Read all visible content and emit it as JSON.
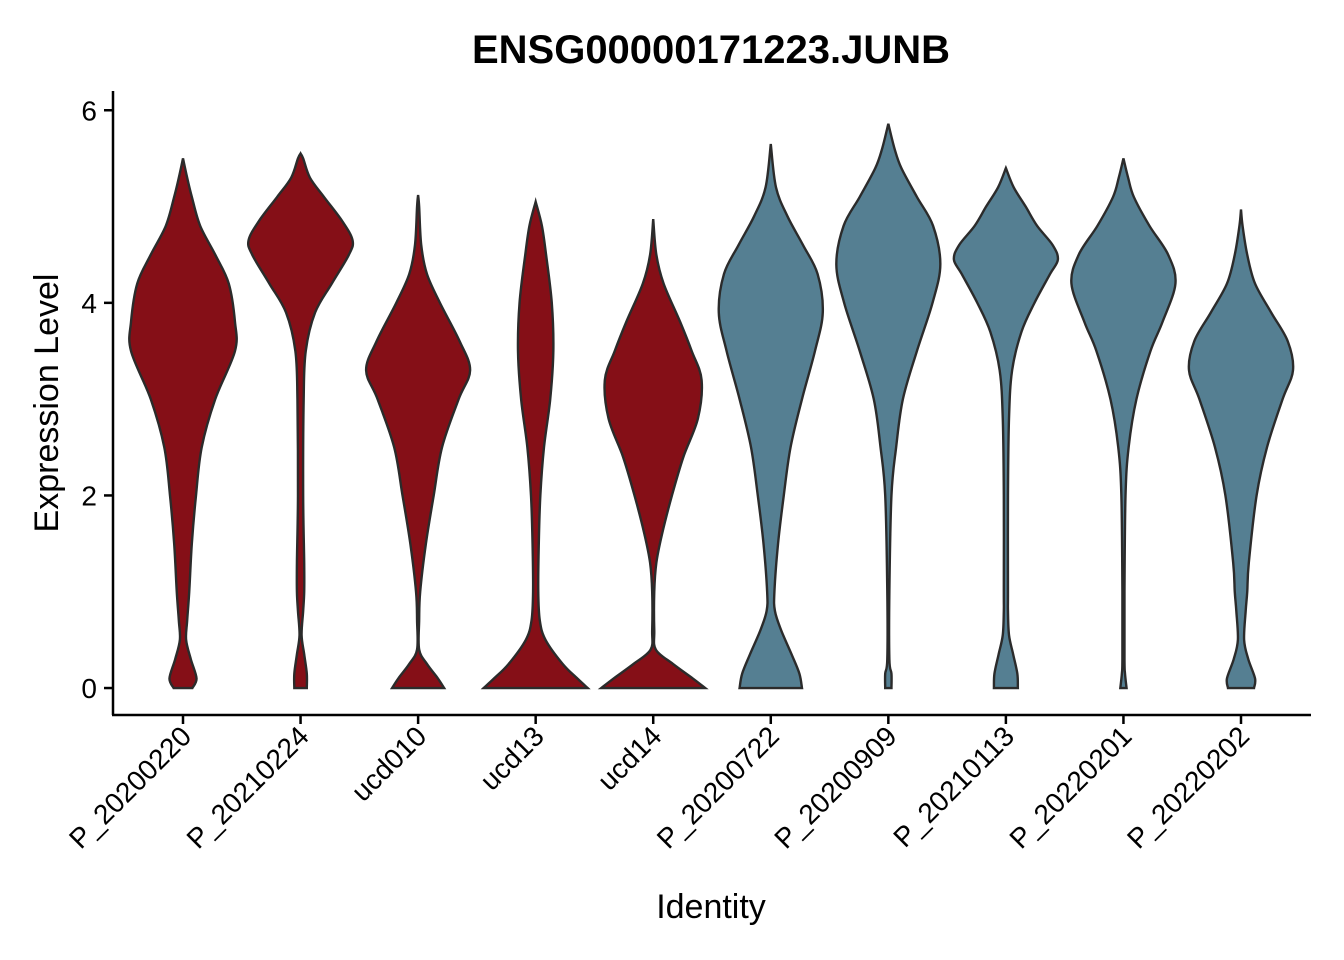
{
  "chart_data": {
    "type": "violin",
    "title": "ENSG00000171223.JUNB",
    "xlabel": "Identity",
    "ylabel": "Expression Level",
    "ylim": [
      -0.28,
      6.2
    ],
    "yticks": [
      0,
      2,
      4,
      6
    ],
    "grid": false,
    "legend": "none",
    "categories": [
      "P_20200220",
      "P_20210224",
      "ucd010",
      "ucd13",
      "ucd14",
      "P_20200722",
      "P_20200909",
      "P_20210113",
      "P_20220201",
      "P_20220202"
    ],
    "violins": [
      {
        "category": "P_20200220",
        "color": "#850F17",
        "max_value": 5.5,
        "profile": [
          [
            0,
            0.18
          ],
          [
            0.1,
            0.26
          ],
          [
            0.3,
            0.15
          ],
          [
            0.5,
            0.06
          ],
          [
            0.7,
            0.08
          ],
          [
            1.0,
            0.12
          ],
          [
            1.5,
            0.17
          ],
          [
            2.0,
            0.25
          ],
          [
            2.5,
            0.36
          ],
          [
            3.0,
            0.62
          ],
          [
            3.5,
            1.0
          ],
          [
            3.8,
            1.0
          ],
          [
            4.2,
            0.88
          ],
          [
            4.5,
            0.62
          ],
          [
            4.8,
            0.33
          ],
          [
            5.1,
            0.17
          ],
          [
            5.3,
            0.08
          ],
          [
            5.5,
            0.0
          ]
        ]
      },
      {
        "category": "P_20210224",
        "color": "#850F17",
        "max_value": 5.55,
        "profile": [
          [
            0,
            0.12
          ],
          [
            0.15,
            0.12
          ],
          [
            0.35,
            0.07
          ],
          [
            0.55,
            0.02
          ],
          [
            0.8,
            0.05
          ],
          [
            1.0,
            0.07
          ],
          [
            1.3,
            0.07
          ],
          [
            2.0,
            0.05
          ],
          [
            3.0,
            0.06
          ],
          [
            3.5,
            0.1
          ],
          [
            3.9,
            0.28
          ],
          [
            4.2,
            0.6
          ],
          [
            4.5,
            0.93
          ],
          [
            4.65,
            1.0
          ],
          [
            4.85,
            0.8
          ],
          [
            5.1,
            0.45
          ],
          [
            5.3,
            0.18
          ],
          [
            5.5,
            0.05
          ],
          [
            5.55,
            0.0
          ]
        ]
      },
      {
        "category": "ucd010",
        "color": "#850F17",
        "max_value": 5.12,
        "profile": [
          [
            0,
            0.5
          ],
          [
            0.1,
            0.38
          ],
          [
            0.25,
            0.17
          ],
          [
            0.4,
            0.02
          ],
          [
            0.7,
            0.02
          ],
          [
            1.0,
            0.04
          ],
          [
            1.5,
            0.15
          ],
          [
            2.0,
            0.3
          ],
          [
            2.5,
            0.46
          ],
          [
            3.0,
            0.78
          ],
          [
            3.3,
            1.0
          ],
          [
            3.6,
            0.8
          ],
          [
            4.0,
            0.42
          ],
          [
            4.3,
            0.17
          ],
          [
            4.6,
            0.06
          ],
          [
            5.0,
            0.02
          ],
          [
            5.12,
            0.0
          ]
        ]
      },
      {
        "category": "ucd13",
        "color": "#850F17",
        "max_value": 5.05,
        "profile": [
          [
            0,
            1.0
          ],
          [
            0.1,
            0.8
          ],
          [
            0.25,
            0.52
          ],
          [
            0.5,
            0.19
          ],
          [
            0.7,
            0.08
          ],
          [
            1.0,
            0.05
          ],
          [
            1.5,
            0.06
          ],
          [
            2.0,
            0.09
          ],
          [
            2.5,
            0.16
          ],
          [
            3.0,
            0.28
          ],
          [
            3.5,
            0.34
          ],
          [
            4.0,
            0.31
          ],
          [
            4.5,
            0.2
          ],
          [
            4.8,
            0.12
          ],
          [
            5.05,
            0.0
          ]
        ]
      },
      {
        "category": "ucd14",
        "color": "#850F17",
        "max_value": 4.87,
        "profile": [
          [
            0,
            1.0
          ],
          [
            0.1,
            0.76
          ],
          [
            0.25,
            0.38
          ],
          [
            0.4,
            0.05
          ],
          [
            0.6,
            0.02
          ],
          [
            1.0,
            0.02
          ],
          [
            1.3,
            0.06
          ],
          [
            1.6,
            0.17
          ],
          [
            2.0,
            0.36
          ],
          [
            2.4,
            0.58
          ],
          [
            2.8,
            0.86
          ],
          [
            3.2,
            0.93
          ],
          [
            3.5,
            0.74
          ],
          [
            3.8,
            0.52
          ],
          [
            4.2,
            0.2
          ],
          [
            4.5,
            0.06
          ],
          [
            4.87,
            0.0
          ]
        ]
      },
      {
        "category": "P_20200722",
        "color": "#557F92",
        "max_value": 5.65,
        "profile": [
          [
            0,
            0.6
          ],
          [
            0.15,
            0.55
          ],
          [
            0.35,
            0.4
          ],
          [
            0.6,
            0.2
          ],
          [
            0.8,
            0.08
          ],
          [
            1.0,
            0.07
          ],
          [
            1.5,
            0.14
          ],
          [
            2.0,
            0.25
          ],
          [
            2.5,
            0.38
          ],
          [
            3.0,
            0.6
          ],
          [
            3.5,
            0.85
          ],
          [
            3.9,
            1.0
          ],
          [
            4.3,
            0.9
          ],
          [
            4.6,
            0.62
          ],
          [
            4.9,
            0.32
          ],
          [
            5.2,
            0.1
          ],
          [
            5.65,
            0.0
          ]
        ]
      },
      {
        "category": "P_20200909",
        "color": "#557F92",
        "max_value": 5.86,
        "profile": [
          [
            0,
            0.06
          ],
          [
            0.15,
            0.06
          ],
          [
            0.3,
            0.02
          ],
          [
            1.0,
            0.02
          ],
          [
            2.0,
            0.06
          ],
          [
            2.5,
            0.15
          ],
          [
            3.0,
            0.28
          ],
          [
            3.5,
            0.55
          ],
          [
            4.0,
            0.85
          ],
          [
            4.4,
            1.0
          ],
          [
            4.8,
            0.86
          ],
          [
            5.1,
            0.55
          ],
          [
            5.4,
            0.25
          ],
          [
            5.6,
            0.12
          ],
          [
            5.86,
            0.0
          ]
        ]
      },
      {
        "category": "P_20210113",
        "color": "#557F92",
        "max_value": 5.4,
        "profile": [
          [
            0,
            0.23
          ],
          [
            0.15,
            0.22
          ],
          [
            0.35,
            0.14
          ],
          [
            0.55,
            0.06
          ],
          [
            0.8,
            0.04
          ],
          [
            1.0,
            0.04
          ],
          [
            2.0,
            0.04
          ],
          [
            2.8,
            0.06
          ],
          [
            3.3,
            0.12
          ],
          [
            3.7,
            0.3
          ],
          [
            4.0,
            0.55
          ],
          [
            4.3,
            0.85
          ],
          [
            4.45,
            1.0
          ],
          [
            4.6,
            0.9
          ],
          [
            4.8,
            0.6
          ],
          [
            5.0,
            0.38
          ],
          [
            5.2,
            0.15
          ],
          [
            5.4,
            0.0
          ]
        ]
      },
      {
        "category": "P_20220201",
        "color": "#557F92",
        "max_value": 5.5,
        "profile": [
          [
            0,
            0.06
          ],
          [
            0.15,
            0.03
          ],
          [
            0.3,
            0.02
          ],
          [
            1.0,
            0.02
          ],
          [
            2.0,
            0.04
          ],
          [
            2.5,
            0.1
          ],
          [
            3.0,
            0.25
          ],
          [
            3.5,
            0.52
          ],
          [
            3.8,
            0.75
          ],
          [
            4.2,
            1.0
          ],
          [
            4.5,
            0.86
          ],
          [
            4.8,
            0.5
          ],
          [
            5.1,
            0.2
          ],
          [
            5.3,
            0.09
          ],
          [
            5.5,
            0.0
          ]
        ]
      },
      {
        "category": "P_20220202",
        "color": "#557F92",
        "max_value": 4.97,
        "profile": [
          [
            0,
            0.25
          ],
          [
            0.1,
            0.27
          ],
          [
            0.3,
            0.14
          ],
          [
            0.5,
            0.06
          ],
          [
            0.8,
            0.09
          ],
          [
            1.0,
            0.12
          ],
          [
            1.3,
            0.15
          ],
          [
            2.0,
            0.3
          ],
          [
            2.5,
            0.5
          ],
          [
            3.0,
            0.8
          ],
          [
            3.3,
            1.0
          ],
          [
            3.6,
            0.9
          ],
          [
            3.9,
            0.58
          ],
          [
            4.2,
            0.27
          ],
          [
            4.5,
            0.12
          ],
          [
            4.8,
            0.03
          ],
          [
            4.97,
            0.0
          ]
        ]
      }
    ]
  }
}
